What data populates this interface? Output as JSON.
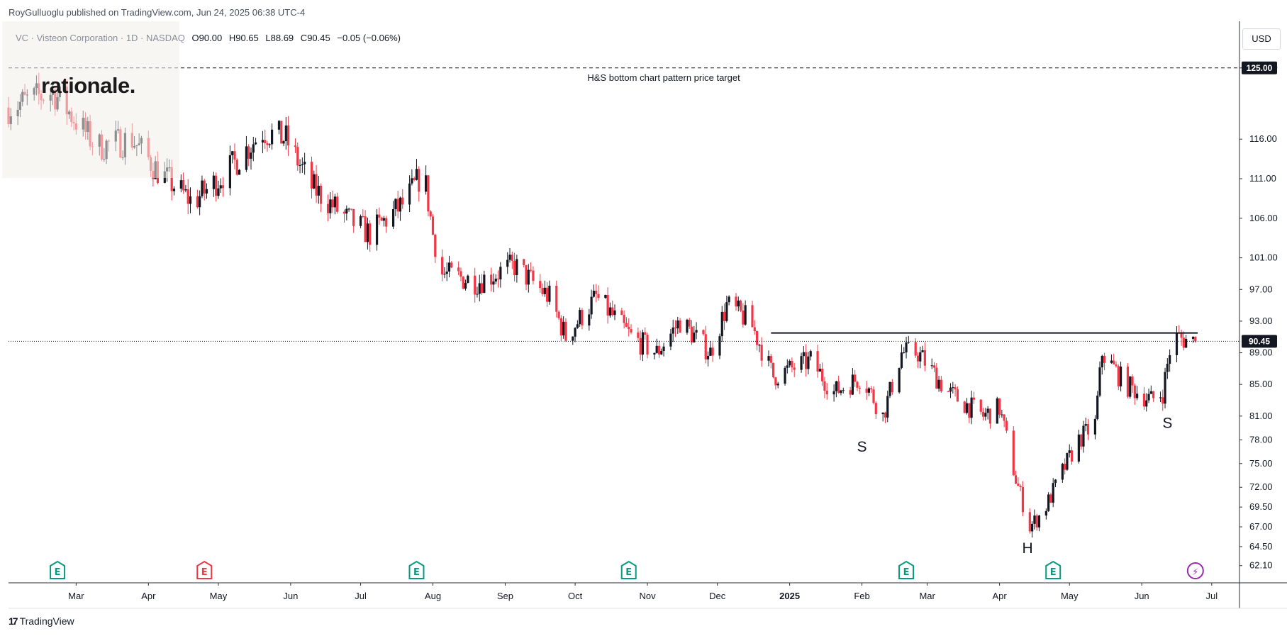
{
  "header": {
    "published": "RoyGulluoglu published on TradingView.com, Jun 24, 2025 06:38 UTC-4"
  },
  "legend": {
    "symbol": "VC · Visteon Corporation · 1D · NASDAQ",
    "o_label": "O",
    "o": "90.00",
    "h_label": "H",
    "h": "90.65",
    "l_label": "L",
    "l": "88.69",
    "c_label": "C",
    "c": "90.45",
    "change": "−0.05 (−0.06%)"
  },
  "watermark": {
    "text": "rationale."
  },
  "currency": "USD",
  "footer": {
    "brand": "TradingView",
    "icon": "tradingview-logo-icon"
  },
  "colors": {
    "up": "#131722",
    "down": "#f23645",
    "event_green": "#089981",
    "event_red": "#f23645",
    "event_purple": "#9c27b0"
  },
  "chart_data": {
    "type": "candlestick",
    "symbol": "VC",
    "ylim": [
      61.0,
      130.0
    ],
    "yticks": [
      "125.00",
      "116.00",
      "111.00",
      "106.00",
      "101.00",
      "97.00",
      "93.00",
      "89.00",
      "85.00",
      "81.00",
      "78.00",
      "75.00",
      "72.00",
      "69.50",
      "67.00",
      "64.50",
      "62.10"
    ],
    "xticks": [
      {
        "label": "Mar",
        "date": "2024-03-01"
      },
      {
        "label": "Apr",
        "date": "2024-04-01"
      },
      {
        "label": "May",
        "date": "2024-05-01"
      },
      {
        "label": "Jun",
        "date": "2024-06-01"
      },
      {
        "label": "Jul",
        "date": "2024-07-01"
      },
      {
        "label": "Aug",
        "date": "2024-08-01"
      },
      {
        "label": "Sep",
        "date": "2024-09-01"
      },
      {
        "label": "Oct",
        "date": "2024-10-01"
      },
      {
        "label": "Nov",
        "date": "2024-11-01"
      },
      {
        "label": "Dec",
        "date": "2024-12-01"
      },
      {
        "label": "2025",
        "date": "2025-01-01"
      },
      {
        "label": "Feb",
        "date": "2025-02-01"
      },
      {
        "label": "Mar",
        "date": "2025-03-01"
      },
      {
        "label": "Apr",
        "date": "2025-04-01"
      },
      {
        "label": "May",
        "date": "2025-05-01"
      },
      {
        "label": "Jun",
        "date": "2025-06-01"
      },
      {
        "label": "Jul",
        "date": "2025-07-01"
      }
    ],
    "x_start": "2024-02-01",
    "x_end": "2025-07-12",
    "last_price": "90.45",
    "target_price": "125.00",
    "series_anchors": [
      [
        "2024-02-01",
        120
      ],
      [
        "2024-02-20",
        122
      ],
      [
        "2024-03-10",
        115
      ],
      [
        "2024-03-25",
        116
      ],
      [
        "2024-04-05",
        112
      ],
      [
        "2024-04-20",
        108
      ],
      [
        "2024-05-05",
        112
      ],
      [
        "2024-05-20",
        117
      ],
      [
        "2024-05-30",
        116
      ],
      [
        "2024-06-10",
        110
      ],
      [
        "2024-06-25",
        106
      ],
      [
        "2024-07-05",
        104
      ],
      [
        "2024-07-20",
        108
      ],
      [
        "2024-07-28",
        112
      ],
      [
        "2024-08-01",
        104
      ],
      [
        "2024-08-05",
        99
      ],
      [
        "2024-08-20",
        98
      ],
      [
        "2024-09-05",
        100
      ],
      [
        "2024-09-20",
        96
      ],
      [
        "2024-09-27",
        91
      ],
      [
        "2024-10-10",
        96
      ],
      [
        "2024-10-25",
        91
      ],
      [
        "2024-11-05",
        89
      ],
      [
        "2024-11-15",
        93
      ],
      [
        "2024-11-28",
        89
      ],
      [
        "2024-12-05",
        95
      ],
      [
        "2024-12-15",
        93
      ],
      [
        "2024-12-25",
        86
      ],
      [
        "2025-01-10",
        88
      ],
      [
        "2025-01-20",
        84
      ],
      [
        "2025-02-01",
        86
      ],
      [
        "2025-02-10",
        81
      ],
      [
        "2025-02-18",
        89
      ],
      [
        "2025-02-25",
        89
      ],
      [
        "2025-03-10",
        84
      ],
      [
        "2025-03-25",
        81
      ],
      [
        "2025-04-01",
        82
      ],
      [
        "2025-04-08",
        73
      ],
      [
        "2025-04-14",
        67
      ],
      [
        "2025-04-20",
        69
      ],
      [
        "2025-04-28",
        74
      ],
      [
        "2025-05-05",
        78
      ],
      [
        "2025-05-12",
        80
      ],
      [
        "2025-05-15",
        89
      ],
      [
        "2025-05-25",
        85
      ],
      [
        "2025-06-05",
        83
      ],
      [
        "2025-06-10",
        84
      ],
      [
        "2025-06-14",
        91
      ],
      [
        "2025-06-24",
        90.45
      ]
    ],
    "neckline": {
      "price": 91.5,
      "from": "2024-12-24",
      "to": "2025-06-25"
    },
    "target_line_label": "H&S bottom chart pattern price target",
    "pattern_labels": [
      {
        "text": "S",
        "date": "2025-02-01",
        "price": 76.5
      },
      {
        "text": "H",
        "date": "2025-04-13",
        "price": 63.7
      },
      {
        "text": "S",
        "date": "2025-06-12",
        "price": 79.5
      }
    ],
    "events": [
      {
        "label": "E",
        "kind": "earnings",
        "date": "2024-02-22",
        "color": "green"
      },
      {
        "label": "E",
        "kind": "earnings",
        "date": "2024-04-25",
        "color": "red"
      },
      {
        "label": "E",
        "kind": "earnings",
        "date": "2024-07-25",
        "color": "green"
      },
      {
        "label": "E",
        "kind": "earnings",
        "date": "2024-10-24",
        "color": "green"
      },
      {
        "label": "E",
        "kind": "earnings",
        "date": "2025-02-20",
        "color": "green"
      },
      {
        "label": "E",
        "kind": "earnings",
        "date": "2025-04-24",
        "color": "green"
      },
      {
        "label": "⚡",
        "kind": "news",
        "date": "2025-06-24",
        "color": "purple"
      }
    ]
  }
}
